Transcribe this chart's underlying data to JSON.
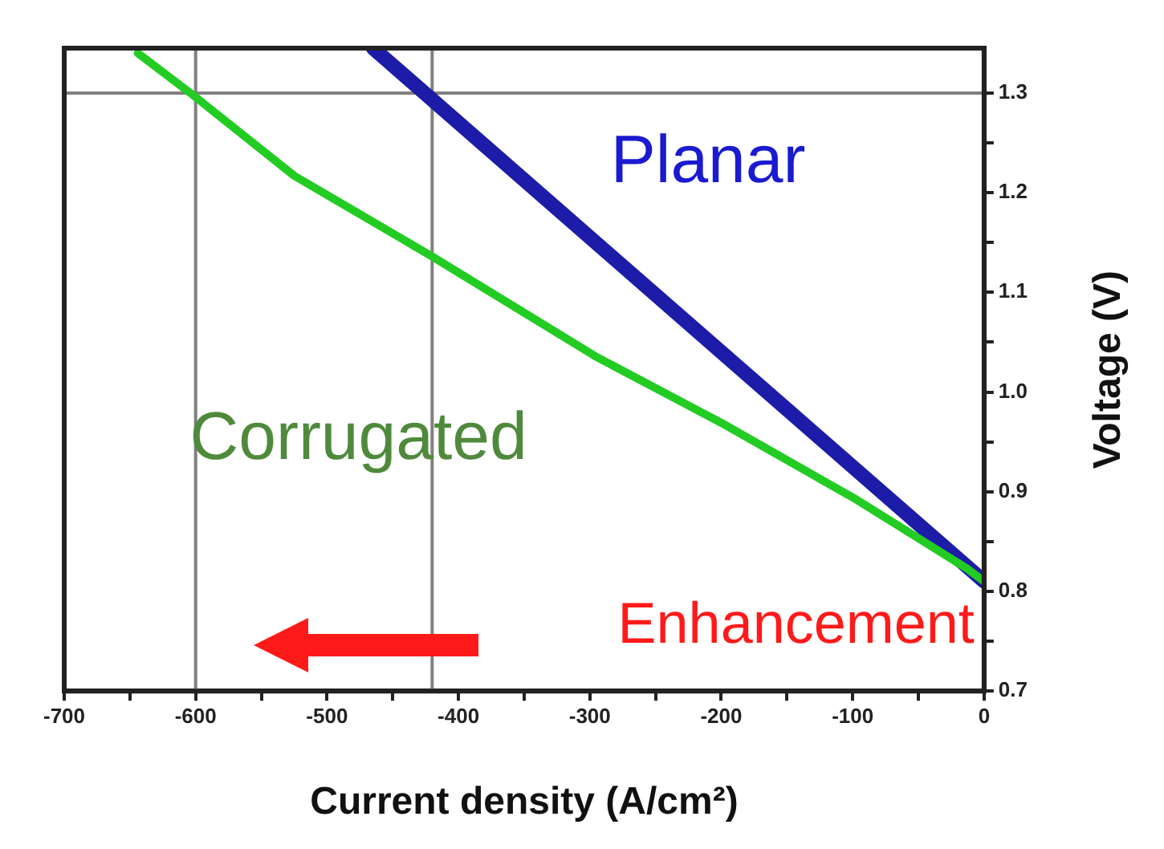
{
  "chart_data": {
    "type": "line",
    "xlabel": "Current density (A/cm²)",
    "ylabel": "Voltage (V)",
    "xlim": [
      -700,
      0
    ],
    "ylim": [
      0.7,
      1.345
    ],
    "xticks": [
      -700,
      {
        "value": -650,
        "label": null
      },
      -600,
      {
        "value": -550,
        "label": null
      },
      -500,
      {
        "value": -450,
        "label": null
      },
      -400,
      {
        "value": -350,
        "label": null
      },
      -300,
      {
        "value": -250,
        "label": null
      },
      -200,
      {
        "value": -150,
        "label": null
      },
      -100,
      {
        "value": -50,
        "label": null
      },
      0
    ],
    "yticks": [
      0.7,
      {
        "value": 0.75,
        "label": null
      },
      0.8,
      {
        "value": 0.85,
        "label": null
      },
      0.9,
      {
        "value": 0.95,
        "label": null
      },
      {
        "value": 1.0,
        "label": "1.0"
      },
      {
        "value": 1.05,
        "label": null
      },
      1.1,
      {
        "value": 1.15,
        "label": null
      },
      1.2,
      {
        "value": 1.25,
        "label": null
      },
      1.3
    ],
    "grid": false,
    "legend": false,
    "marker": "none",
    "line_style": "solid",
    "series": [
      {
        "name": "Planar",
        "color": "#1c1ca8",
        "x": [
          -465,
          0
        ],
        "values": [
          1.345,
          0.81
        ]
      },
      {
        "name": "Corrugated",
        "color": "#22cc22",
        "x": [
          -644,
          -604,
          -525,
          -420,
          -296,
          -197,
          -97,
          -13,
          0
        ],
        "values": [
          1.34,
          1.3,
          1.217,
          1.136,
          1.036,
          0.967,
          0.892,
          0.823,
          0.81
        ]
      }
    ],
    "ref_lines": [
      {
        "axis": "y",
        "value": 1.3,
        "color": "#808080"
      },
      {
        "axis": "x",
        "value": -600,
        "color": "#808080"
      },
      {
        "axis": "x",
        "value": -420,
        "color": "#808080"
      }
    ],
    "annotations": [
      "Enhancement"
    ]
  }
}
